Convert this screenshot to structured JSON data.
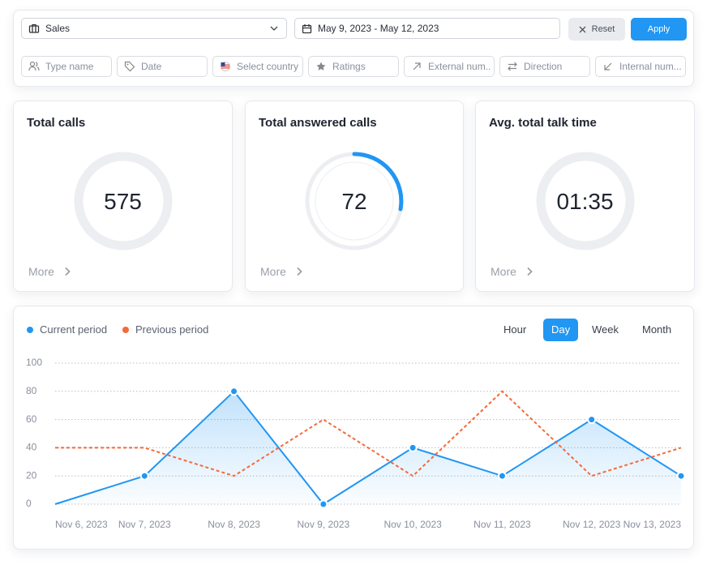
{
  "filters": {
    "team": "Sales",
    "date_range": "May 9, 2023 - May 12, 2023",
    "reset": "Reset",
    "apply": "Apply",
    "inputs": [
      "Type name",
      "Date",
      "Select country",
      "Ratings",
      "External num..",
      "Direction",
      "Internal num..."
    ]
  },
  "cards": [
    {
      "title": "Total calls",
      "value": "575",
      "more": "More"
    },
    {
      "title": "Total answered calls",
      "value": "72",
      "more": "More"
    },
    {
      "title": "Avg. total talk time",
      "value": "01:35",
      "more": "More"
    }
  ],
  "periods": [
    "Hour",
    "Day",
    "Week",
    "Month"
  ],
  "active_period": "Day",
  "chart_data": {
    "type": "line",
    "categories": [
      "Nov 6, 2023",
      "Nov 7, 2023",
      "Nov 8, 2023",
      "Nov 9, 2023",
      "Nov 10, 2023",
      "Nov 11, 2023",
      "Nov 12, 2023",
      "Nov 13, 2023"
    ],
    "series": [
      {
        "name": "Current period",
        "color": "#2196f3",
        "values": [
          0,
          20,
          80,
          0,
          40,
          20,
          60,
          20
        ]
      },
      {
        "name": "Previous period",
        "color": "#f26b3a",
        "dashed": true,
        "values": [
          40,
          40,
          20,
          60,
          20,
          80,
          20,
          40
        ]
      }
    ],
    "ylim": [
      0,
      100
    ],
    "yticks": [
      0,
      20,
      40,
      60,
      80,
      100
    ],
    "grid": true
  }
}
